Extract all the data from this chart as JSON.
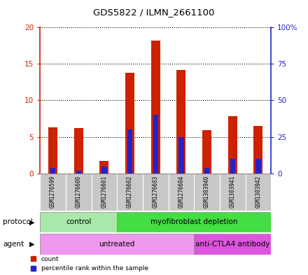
{
  "title": "GDS5822 / ILMN_2661100",
  "samples": [
    "GSM1276599",
    "GSM1276600",
    "GSM1276601",
    "GSM1276602",
    "GSM1276603",
    "GSM1276604",
    "GSM1303940",
    "GSM1303941",
    "GSM1303942"
  ],
  "count_values": [
    6.3,
    6.2,
    1.7,
    13.8,
    18.2,
    14.2,
    5.9,
    7.8,
    6.5
  ],
  "percentile_values": [
    3.5,
    1.5,
    4.5,
    30.0,
    40.0,
    25.0,
    3.5,
    10.0,
    10.0
  ],
  "count_color": "#cc2200",
  "percentile_color": "#2222cc",
  "ylim_left": [
    0,
    20
  ],
  "ylim_right": [
    0,
    100
  ],
  "yticks_left": [
    0,
    5,
    10,
    15,
    20
  ],
  "yticks_right": [
    0,
    25,
    50,
    75,
    100
  ],
  "ytick_labels_left": [
    "0",
    "5",
    "10",
    "15",
    "20"
  ],
  "ytick_labels_right": [
    "0",
    "25",
    "50",
    "75",
    "100%"
  ],
  "protocol_groups": [
    {
      "label": "control",
      "start": 0,
      "end": 3,
      "color": "#aae8aa"
    },
    {
      "label": "myofibroblast depletion",
      "start": 3,
      "end": 9,
      "color": "#44dd44"
    }
  ],
  "agent_groups": [
    {
      "label": "untreated",
      "start": 0,
      "end": 6,
      "color": "#ee99ee"
    },
    {
      "label": "anti-CTLA4 antibody",
      "start": 6,
      "end": 9,
      "color": "#dd55dd"
    }
  ],
  "protocol_label": "protocol",
  "agent_label": "agent",
  "bar_width": 0.35,
  "percentile_bar_width": 0.2,
  "background_color": "#ffffff",
  "plot_bg_color": "#ffffff",
  "sample_bg_color": "#c8c8c8"
}
